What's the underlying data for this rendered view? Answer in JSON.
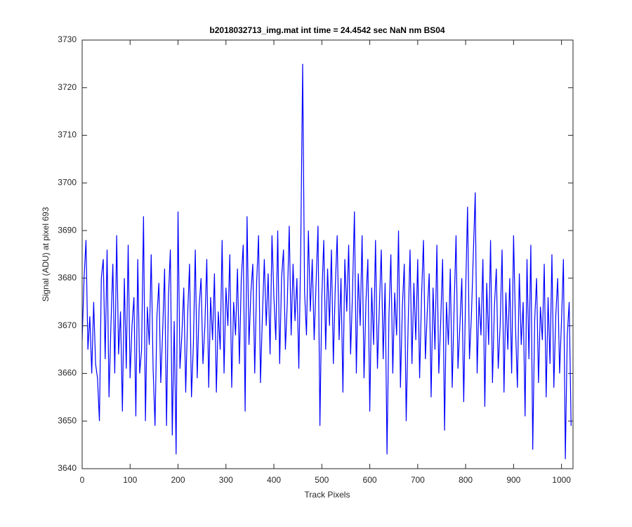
{
  "chart_data": {
    "type": "line",
    "title": "b2018032713_img.mat int time = 24.4542 sec  NaN nm BS04",
    "x_label": "Track Pixels",
    "y_label": "Signal (ADU) at pixel 693",
    "xlim": [
      0,
      1024
    ],
    "ylim": [
      3640,
      3730
    ],
    "xticks": [
      0,
      100,
      200,
      300,
      400,
      500,
      600,
      700,
      800,
      900,
      1000
    ],
    "yticks": [
      3640,
      3650,
      3660,
      3670,
      3680,
      3690,
      3700,
      3710,
      3720,
      3730
    ],
    "series": [
      {
        "color": "#0000ff",
        "x": [
          0,
          4,
          8,
          12,
          16,
          20,
          24,
          28,
          32,
          36,
          40,
          44,
          48,
          52,
          56,
          60,
          64,
          68,
          72,
          76,
          80,
          84,
          88,
          92,
          96,
          100,
          104,
          108,
          112,
          116,
          120,
          124,
          128,
          132,
          136,
          140,
          144,
          148,
          152,
          156,
          160,
          164,
          168,
          172,
          176,
          180,
          184,
          188,
          192,
          196,
          200,
          204,
          208,
          212,
          216,
          220,
          224,
          228,
          232,
          236,
          240,
          244,
          248,
          252,
          256,
          260,
          264,
          268,
          272,
          276,
          280,
          284,
          288,
          292,
          296,
          300,
          304,
          308,
          312,
          316,
          320,
          324,
          328,
          332,
          336,
          340,
          344,
          348,
          352,
          356,
          360,
          364,
          368,
          372,
          376,
          380,
          384,
          388,
          392,
          396,
          400,
          404,
          408,
          412,
          416,
          420,
          424,
          428,
          432,
          436,
          440,
          444,
          448,
          452,
          456,
          460,
          464,
          468,
          472,
          476,
          480,
          484,
          488,
          492,
          496,
          500,
          504,
          508,
          512,
          516,
          520,
          524,
          528,
          532,
          536,
          540,
          544,
          548,
          552,
          556,
          560,
          564,
          568,
          572,
          576,
          580,
          584,
          588,
          592,
          596,
          600,
          604,
          608,
          612,
          616,
          620,
          624,
          628,
          632,
          636,
          640,
          644,
          648,
          652,
          656,
          660,
          664,
          668,
          672,
          676,
          680,
          684,
          688,
          692,
          696,
          700,
          704,
          708,
          712,
          716,
          720,
          724,
          728,
          732,
          736,
          740,
          744,
          748,
          752,
          756,
          760,
          764,
          768,
          772,
          776,
          780,
          784,
          788,
          792,
          796,
          800,
          804,
          808,
          812,
          816,
          820,
          824,
          828,
          832,
          836,
          840,
          844,
          848,
          852,
          856,
          860,
          864,
          868,
          872,
          876,
          880,
          884,
          888,
          892,
          896,
          900,
          904,
          908,
          912,
          916,
          920,
          924,
          928,
          932,
          936,
          940,
          944,
          948,
          952,
          956,
          960,
          964,
          968,
          972,
          976,
          980,
          984,
          988,
          992,
          996,
          1000,
          1004,
          1008,
          1012,
          1016,
          1020
        ],
        "values": [
          3667,
          3680,
          3688,
          3665,
          3672,
          3660,
          3675,
          3662,
          3659,
          3650,
          3680,
          3684,
          3663,
          3686,
          3655,
          3670,
          3683,
          3660,
          3689,
          3664,
          3673,
          3652,
          3680,
          3661,
          3687,
          3659,
          3670,
          3676,
          3651,
          3684,
          3660,
          3665,
          3693,
          3650,
          3674,
          3666,
          3685,
          3661,
          3649,
          3672,
          3679,
          3658,
          3669,
          3682,
          3649,
          3676,
          3686,
          3647,
          3671,
          3643,
          3694,
          3661,
          3668,
          3678,
          3656,
          3672,
          3683,
          3655,
          3666,
          3686,
          3659,
          3674,
          3680,
          3662,
          3670,
          3684,
          3657,
          3676,
          3667,
          3681,
          3656,
          3673,
          3665,
          3688,
          3660,
          3678,
          3670,
          3685,
          3657,
          3675,
          3668,
          3682,
          3662,
          3680,
          3687,
          3652,
          3693,
          3666,
          3677,
          3683,
          3660,
          3679,
          3689,
          3658,
          3672,
          3684,
          3670,
          3681,
          3664,
          3689,
          3676,
          3667,
          3690,
          3662,
          3680,
          3686,
          3665,
          3675,
          3691,
          3668,
          3683,
          3671,
          3680,
          3661,
          3686,
          3725,
          3677,
          3668,
          3690,
          3673,
          3684,
          3667,
          3679,
          3691,
          3649,
          3676,
          3688,
          3665,
          3682,
          3670,
          3686,
          3662,
          3678,
          3689,
          3667,
          3680,
          3656,
          3684,
          3673,
          3687,
          3664,
          3677,
          3694,
          3660,
          3681,
          3670,
          3689,
          3659,
          3675,
          3684,
          3652,
          3678,
          3666,
          3688,
          3661,
          3674,
          3686,
          3663,
          3679,
          3643,
          3672,
          3685,
          3660,
          3677,
          3668,
          3690,
          3657,
          3674,
          3683,
          3650,
          3670,
          3686,
          3662,
          3679,
          3667,
          3684,
          3659,
          3676,
          3688,
          3663,
          3673,
          3681,
          3655,
          3678,
          3665,
          3687,
          3660,
          3671,
          3684,
          3648,
          3675,
          3666,
          3682,
          3657,
          3674,
          3689,
          3661,
          3670,
          3680,
          3654,
          3677,
          3695,
          3663,
          3672,
          3685,
          3698,
          3660,
          3676,
          3668,
          3684,
          3653,
          3679,
          3666,
          3688,
          3658,
          3674,
          3682,
          3661,
          3670,
          3686,
          3656,
          3677,
          3665,
          3680,
          3660,
          3689,
          3670,
          3657,
          3681,
          3666,
          3675,
          3651,
          3684,
          3663,
          3687,
          3644,
          3671,
          3680,
          3658,
          3674,
          3667,
          3683,
          3655,
          3676,
          3662,
          3685,
          3657,
          3672,
          3680,
          3660,
          3671,
          3684,
          3642,
          3668,
          3675,
          3649
        ]
      }
    ]
  }
}
